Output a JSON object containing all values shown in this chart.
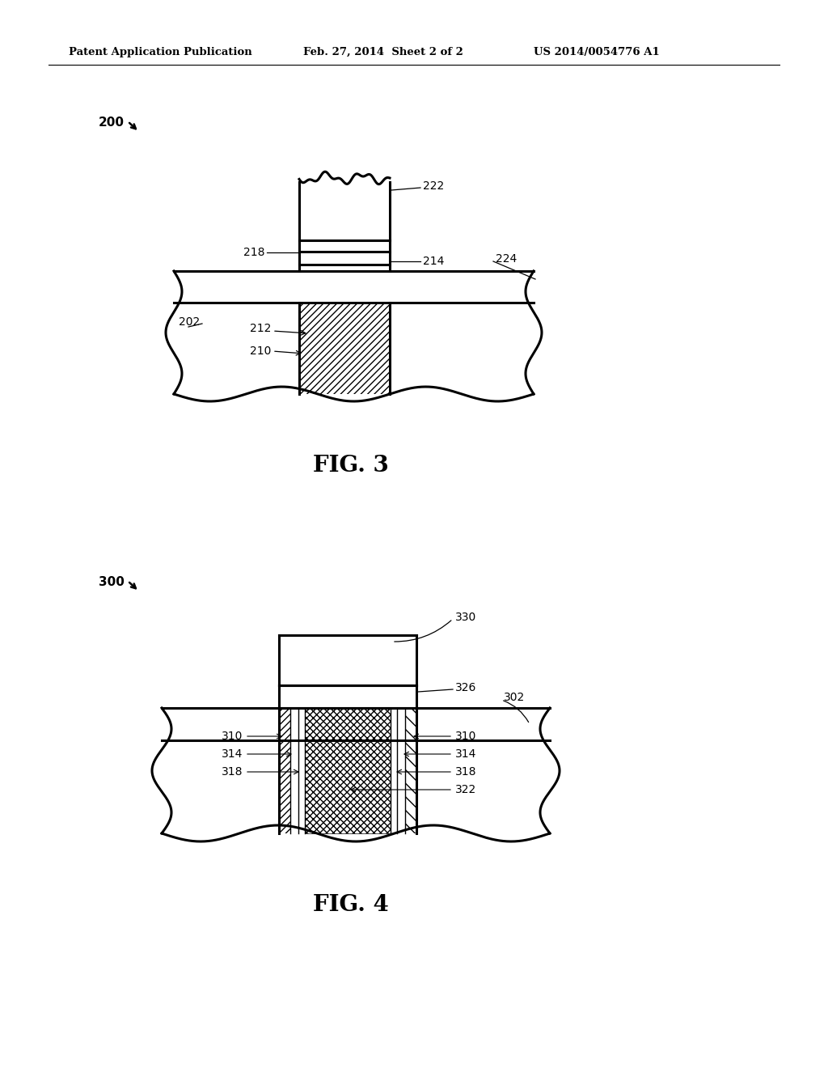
{
  "background_color": "#ffffff",
  "header_left": "Patent Application Publication",
  "header_center": "Feb. 27, 2014  Sheet 2 of 2",
  "header_right": "US 2014/0054776 A1",
  "fig3_label": "FIG. 3",
  "fig4_label": "FIG. 4",
  "ref200": "200",
  "ref202": "202",
  "ref210": "210",
  "ref212": "212",
  "ref214": "214",
  "ref218": "218",
  "ref222": "222",
  "ref224": "224",
  "ref300": "300",
  "ref302": "302",
  "ref310": "310",
  "ref314": "314",
  "ref318": "318",
  "ref322": "322",
  "ref326": "326",
  "ref330": "330",
  "lw_main": 2.2,
  "lw_thin": 1.0
}
